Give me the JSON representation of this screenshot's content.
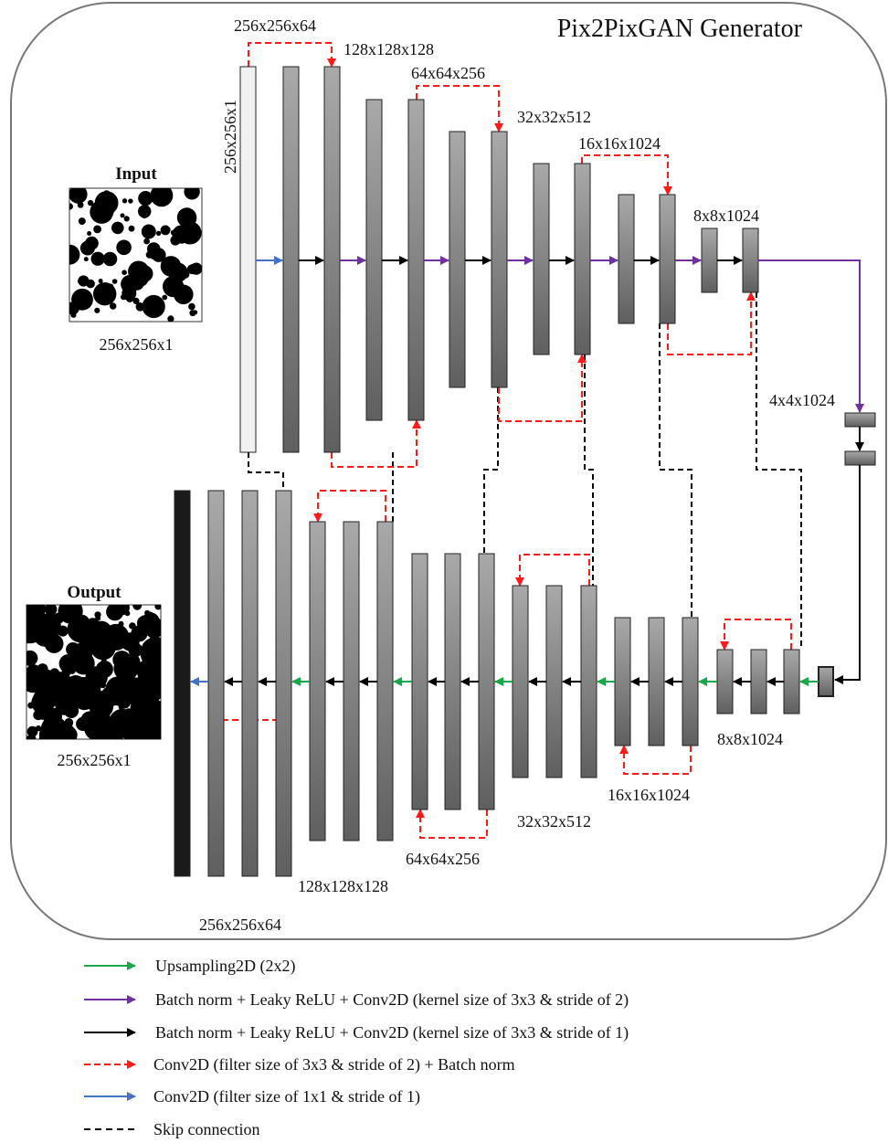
{
  "title": "Pix2PixGAN Generator",
  "input": {
    "heading": "Input",
    "size": "256x256x1"
  },
  "output": {
    "heading": "Output",
    "size": "256x256x1"
  },
  "encoder_labels": {
    "input_layer": "256x256x1",
    "l1": "256x256x64",
    "l2": "128x128x128",
    "l3": "64x64x256",
    "l4": "32x32x512",
    "l5": "16x16x1024",
    "l6": "8x8x1024",
    "bottleneck": "4x4x1024"
  },
  "decoder_labels": {
    "d1": "8x8x1024",
    "d2": "16x16x1024",
    "d3": "32x32x512",
    "d4": "64x64x256",
    "d5": "128x128x128",
    "d6": "256x256x64"
  },
  "legend": [
    {
      "label": "Upsampling2D (2x2)",
      "style": "green-arrow",
      "color": "#1aa64a"
    },
    {
      "label": "Batch norm + Leaky ReLU + Conv2D (kernel size of 3x3 & stride of 2)",
      "style": "purple-arrow",
      "color": "#7030a0"
    },
    {
      "label": "Batch norm + Leaky ReLU + Conv2D (kernel size of 3x3 & stride of 1)",
      "style": "black-arrow",
      "color": "#000000"
    },
    {
      "label": "Conv2D (filter size of 3x3 & stride of 2) + Batch norm",
      "style": "red-dashed-arrow",
      "color": "#ff1a1a"
    },
    {
      "label": "Conv2D (filter size of 1x1 & stride of 1)",
      "style": "blue-arrow",
      "color": "#4472c4"
    },
    {
      "label": "Skip connection",
      "style": "black-dashed-line",
      "color": "#000000"
    }
  ]
}
